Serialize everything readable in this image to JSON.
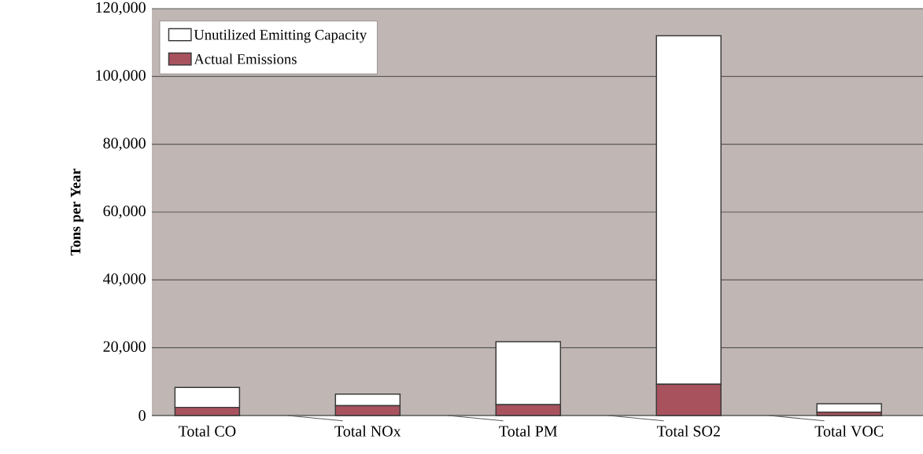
{
  "chart_data": {
    "type": "bar",
    "stacked": true,
    "ylabel": "Tons per Year",
    "categories": [
      "Total CO",
      "Total NOx",
      "Total PM",
      "Total SO2",
      "Total VOC"
    ],
    "series": [
      {
        "name": "Actual Emissions",
        "color": "#a8525e",
        "values": [
          2400,
          2900,
          3200,
          9200,
          1000
        ]
      },
      {
        "name": "Unutilized Emitting Capacity",
        "color": "#ffffff",
        "values": [
          5900,
          3400,
          18600,
          102800,
          2500
        ]
      }
    ],
    "ylim": [
      0,
      120000
    ],
    "yticks": [
      0,
      {
        "value": 20000,
        "label": "20,000"
      },
      {
        "value": 40000,
        "label": "40,000"
      },
      {
        "value": 60000,
        "label": "60,000"
      },
      {
        "value": 80000,
        "label": "80,000"
      },
      {
        "value": 100000,
        "label": "100,000"
      },
      {
        "value": 120000,
        "label": "120,000"
      }
    ],
    "grid": "y",
    "legend": "top left"
  }
}
